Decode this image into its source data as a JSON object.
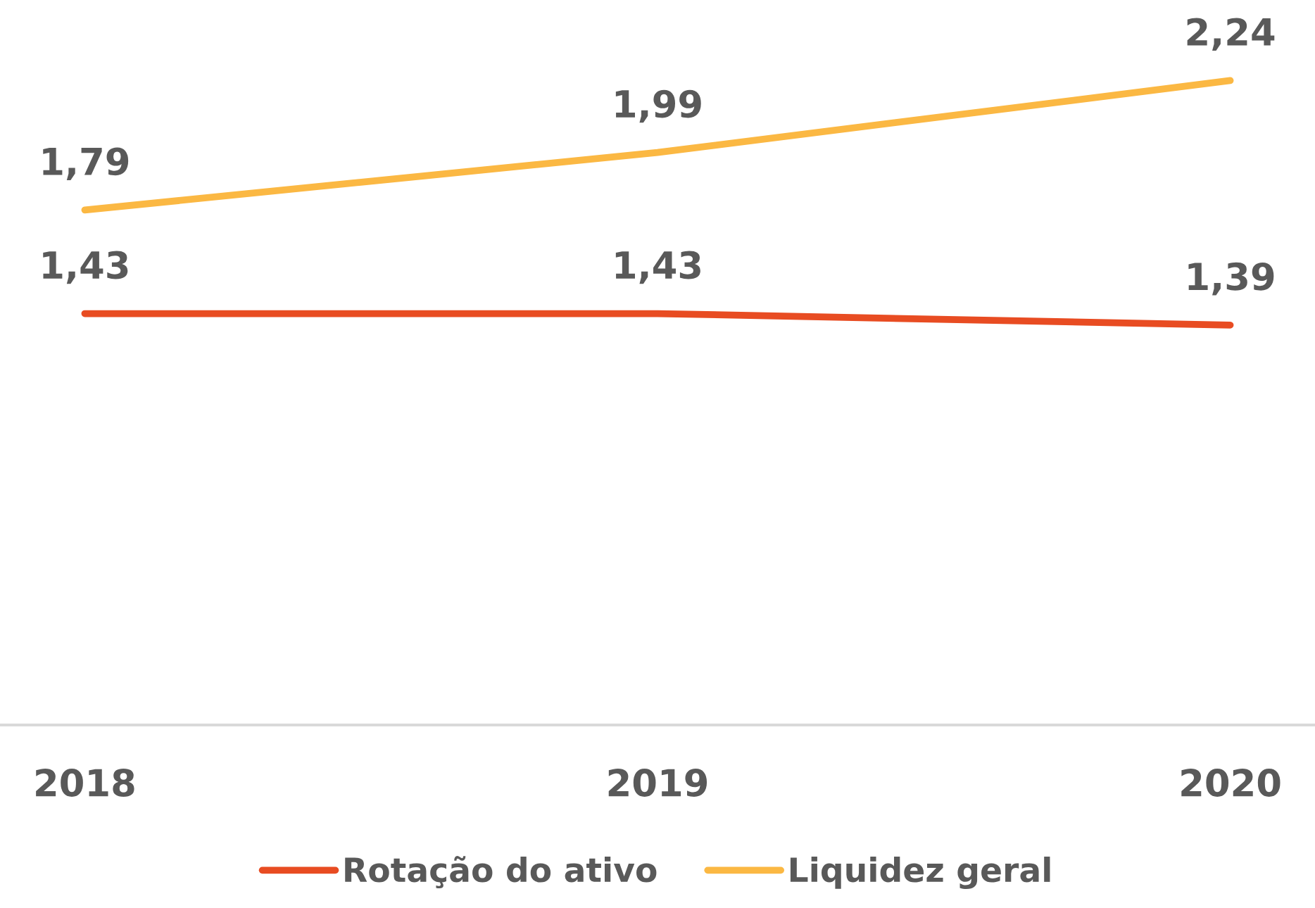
{
  "chart_data": {
    "type": "line",
    "categories": [
      "2018",
      "2019",
      "2020"
    ],
    "series": [
      {
        "name": "Rotação do ativo",
        "color": "#e84c22",
        "values": [
          1.43,
          1.43,
          1.39
        ],
        "value_labels": [
          "1,43",
          "1,43",
          "1,39"
        ]
      },
      {
        "name": "Liquidez geral",
        "color": "#fbb843",
        "values": [
          1.79,
          1.99,
          2.24
        ],
        "value_labels": [
          "1,79",
          "1,99",
          "2,24"
        ]
      }
    ],
    "tick_labels": "x",
    "grid": false,
    "legend": "bottom",
    "marker": "none",
    "line_style": "solid"
  }
}
